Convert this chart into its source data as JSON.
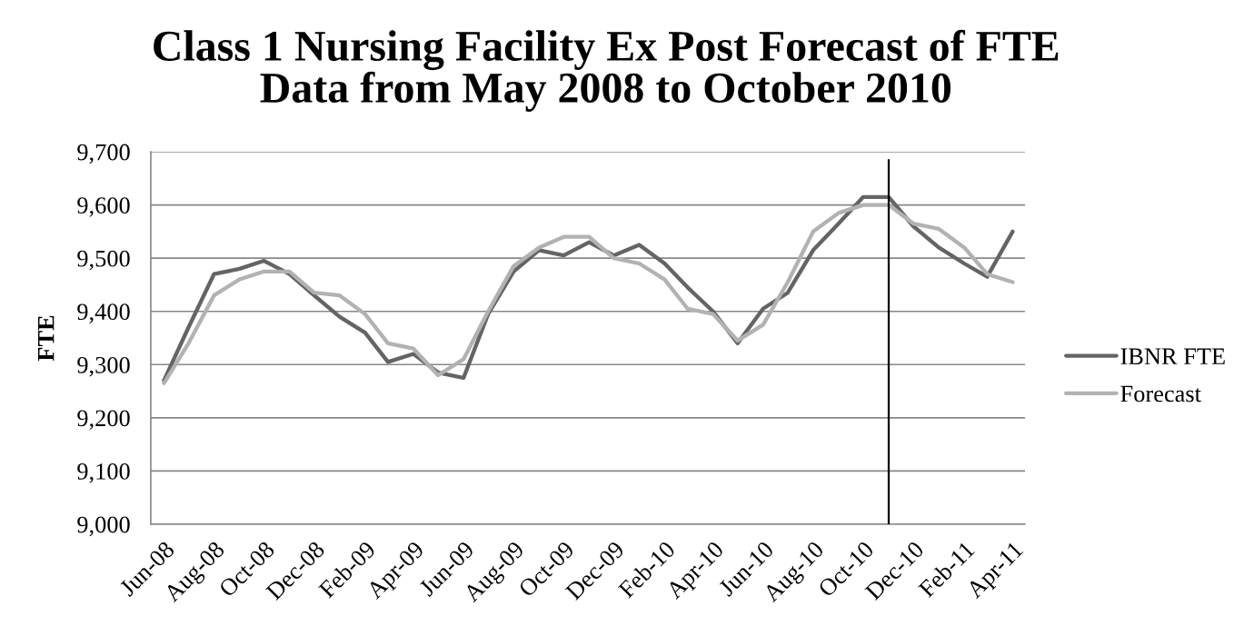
{
  "chart_data": {
    "type": "line",
    "title": "Class 1 Nursing Facility Ex Post Forecast of FTE\nData from May 2008 to October 2010",
    "ylabel": "FTE",
    "x": [
      "2008-06",
      "2008-07",
      "2008-08",
      "2008-09",
      "2008-10",
      "2008-11",
      "2008-12",
      "2009-01",
      "2009-02",
      "2009-03",
      "2009-04",
      "2009-05",
      "2009-06",
      "2009-07",
      "2009-08",
      "2009-09",
      "2009-10",
      "2009-11",
      "2009-12",
      "2010-01",
      "2010-02",
      "2010-03",
      "2010-04",
      "2010-05",
      "2010-06",
      "2010-07",
      "2010-08",
      "2010-09",
      "2010-10",
      "2010-11",
      "2010-12",
      "2011-01",
      "2011-02",
      "2011-03",
      "2011-04"
    ],
    "series": [
      {
        "name": "IBNR FTE",
        "color": "#646464",
        "values": [
          9270,
          9370,
          9470,
          9480,
          9495,
          9470,
          9430,
          9390,
          9360,
          9305,
          9320,
          9285,
          9275,
          9395,
          9475,
          9515,
          9505,
          9530,
          9505,
          9525,
          9490,
          9445,
          9400,
          9340,
          9405,
          9435,
          9515,
          9565,
          9615,
          9615,
          9560,
          9520,
          9490,
          9465,
          9550
        ]
      },
      {
        "name": "Forecast",
        "color": "#b2b2b2",
        "values": [
          9265,
          9340,
          9430,
          9460,
          9475,
          9475,
          9435,
          9430,
          9395,
          9340,
          9330,
          9280,
          9310,
          9400,
          9485,
          9520,
          9540,
          9540,
          9500,
          9490,
          9460,
          9405,
          9395,
          9345,
          9375,
          9455,
          9550,
          9585,
          9600,
          9600,
          9565,
          9555,
          9520,
          9470,
          9455
        ]
      }
    ],
    "xlim": [
      "2008-05-16",
      "2011-04-16"
    ],
    "xticks": [
      {
        "value": "2008-06",
        "label": "Jun-08"
      },
      {
        "value": "2008-08",
        "label": "Aug-08"
      },
      {
        "value": "2008-10",
        "label": "Oct-08"
      },
      {
        "value": "2008-12",
        "label": "Dec-08"
      },
      {
        "value": "2009-02",
        "label": "Feb-09"
      },
      {
        "value": "2009-04",
        "label": "Apr-09"
      },
      {
        "value": "2009-06",
        "label": "Jun-09"
      },
      {
        "value": "2009-08",
        "label": "Aug-09"
      },
      {
        "value": "2009-10",
        "label": "Oct-09"
      },
      {
        "value": "2009-12",
        "label": "Dec-09"
      },
      {
        "value": "2010-02",
        "label": "Feb-10"
      },
      {
        "value": "2010-04",
        "label": "Apr-10"
      },
      {
        "value": "2010-06",
        "label": "Jun-10"
      },
      {
        "value": "2010-08",
        "label": "Aug-10"
      },
      {
        "value": "2010-10",
        "label": "Oct-10"
      },
      {
        "value": "2010-12",
        "label": "Dec-10"
      },
      {
        "value": "2011-02",
        "label": "Feb-11"
      },
      {
        "value": "2011-04",
        "label": "Apr-11"
      }
    ],
    "ylim": [
      9000,
      9700
    ],
    "yticks": [
      {
        "value": 9000,
        "label": "9,000"
      },
      {
        "value": 9100,
        "label": "9,100"
      },
      {
        "value": 9200,
        "label": "9,200"
      },
      {
        "value": 9300,
        "label": "9,300"
      },
      {
        "value": 9400,
        "label": "9,400"
      },
      {
        "value": 9500,
        "label": "9,500"
      },
      {
        "value": 9600,
        "label": "9,600"
      },
      {
        "value": 9700,
        "label": "9,700"
      }
    ],
    "ref_lines": [
      {
        "axis": "x",
        "value": "2010-11",
        "color": "#000000"
      }
    ],
    "grid": "y",
    "legend": "right"
  }
}
